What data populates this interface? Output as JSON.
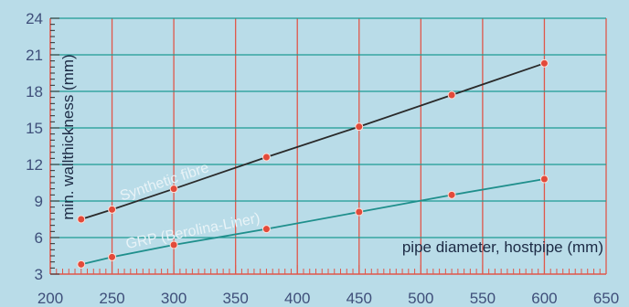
{
  "chart_data": {
    "type": "line",
    "xlabel": "pipe diameter, hostpipe (mm)",
    "ylabel": "min. wallthickness (mm)",
    "xlim": [
      200,
      650
    ],
    "ylim": [
      3,
      24
    ],
    "xticks": [
      200,
      250,
      300,
      350,
      400,
      450,
      500,
      550,
      600,
      650
    ],
    "yticks": [
      3,
      6,
      9,
      12,
      15,
      18,
      21,
      24
    ],
    "grid": true,
    "series": [
      {
        "name": "Synthetic fibre",
        "color": "#2a2a2a",
        "x": [
          225,
          250,
          300,
          375,
          450,
          525,
          600
        ],
        "y": [
          7.5,
          8.3,
          10.0,
          12.6,
          15.1,
          17.7,
          20.3
        ]
      },
      {
        "name": "GRP (Berolina-Liner)",
        "color": "#1f8f8c",
        "x": [
          225,
          250,
          300,
          375,
          450,
          525,
          600
        ],
        "y": [
          3.8,
          4.4,
          5.4,
          6.7,
          8.1,
          9.5,
          10.8
        ]
      }
    ],
    "colors": {
      "background": "#b9dce8",
      "vertical_grid": "#e0574a",
      "horizontal_grid": "#1d9a93",
      "marker": "#e24a3a",
      "tick_label": "#3f4f7a"
    }
  }
}
